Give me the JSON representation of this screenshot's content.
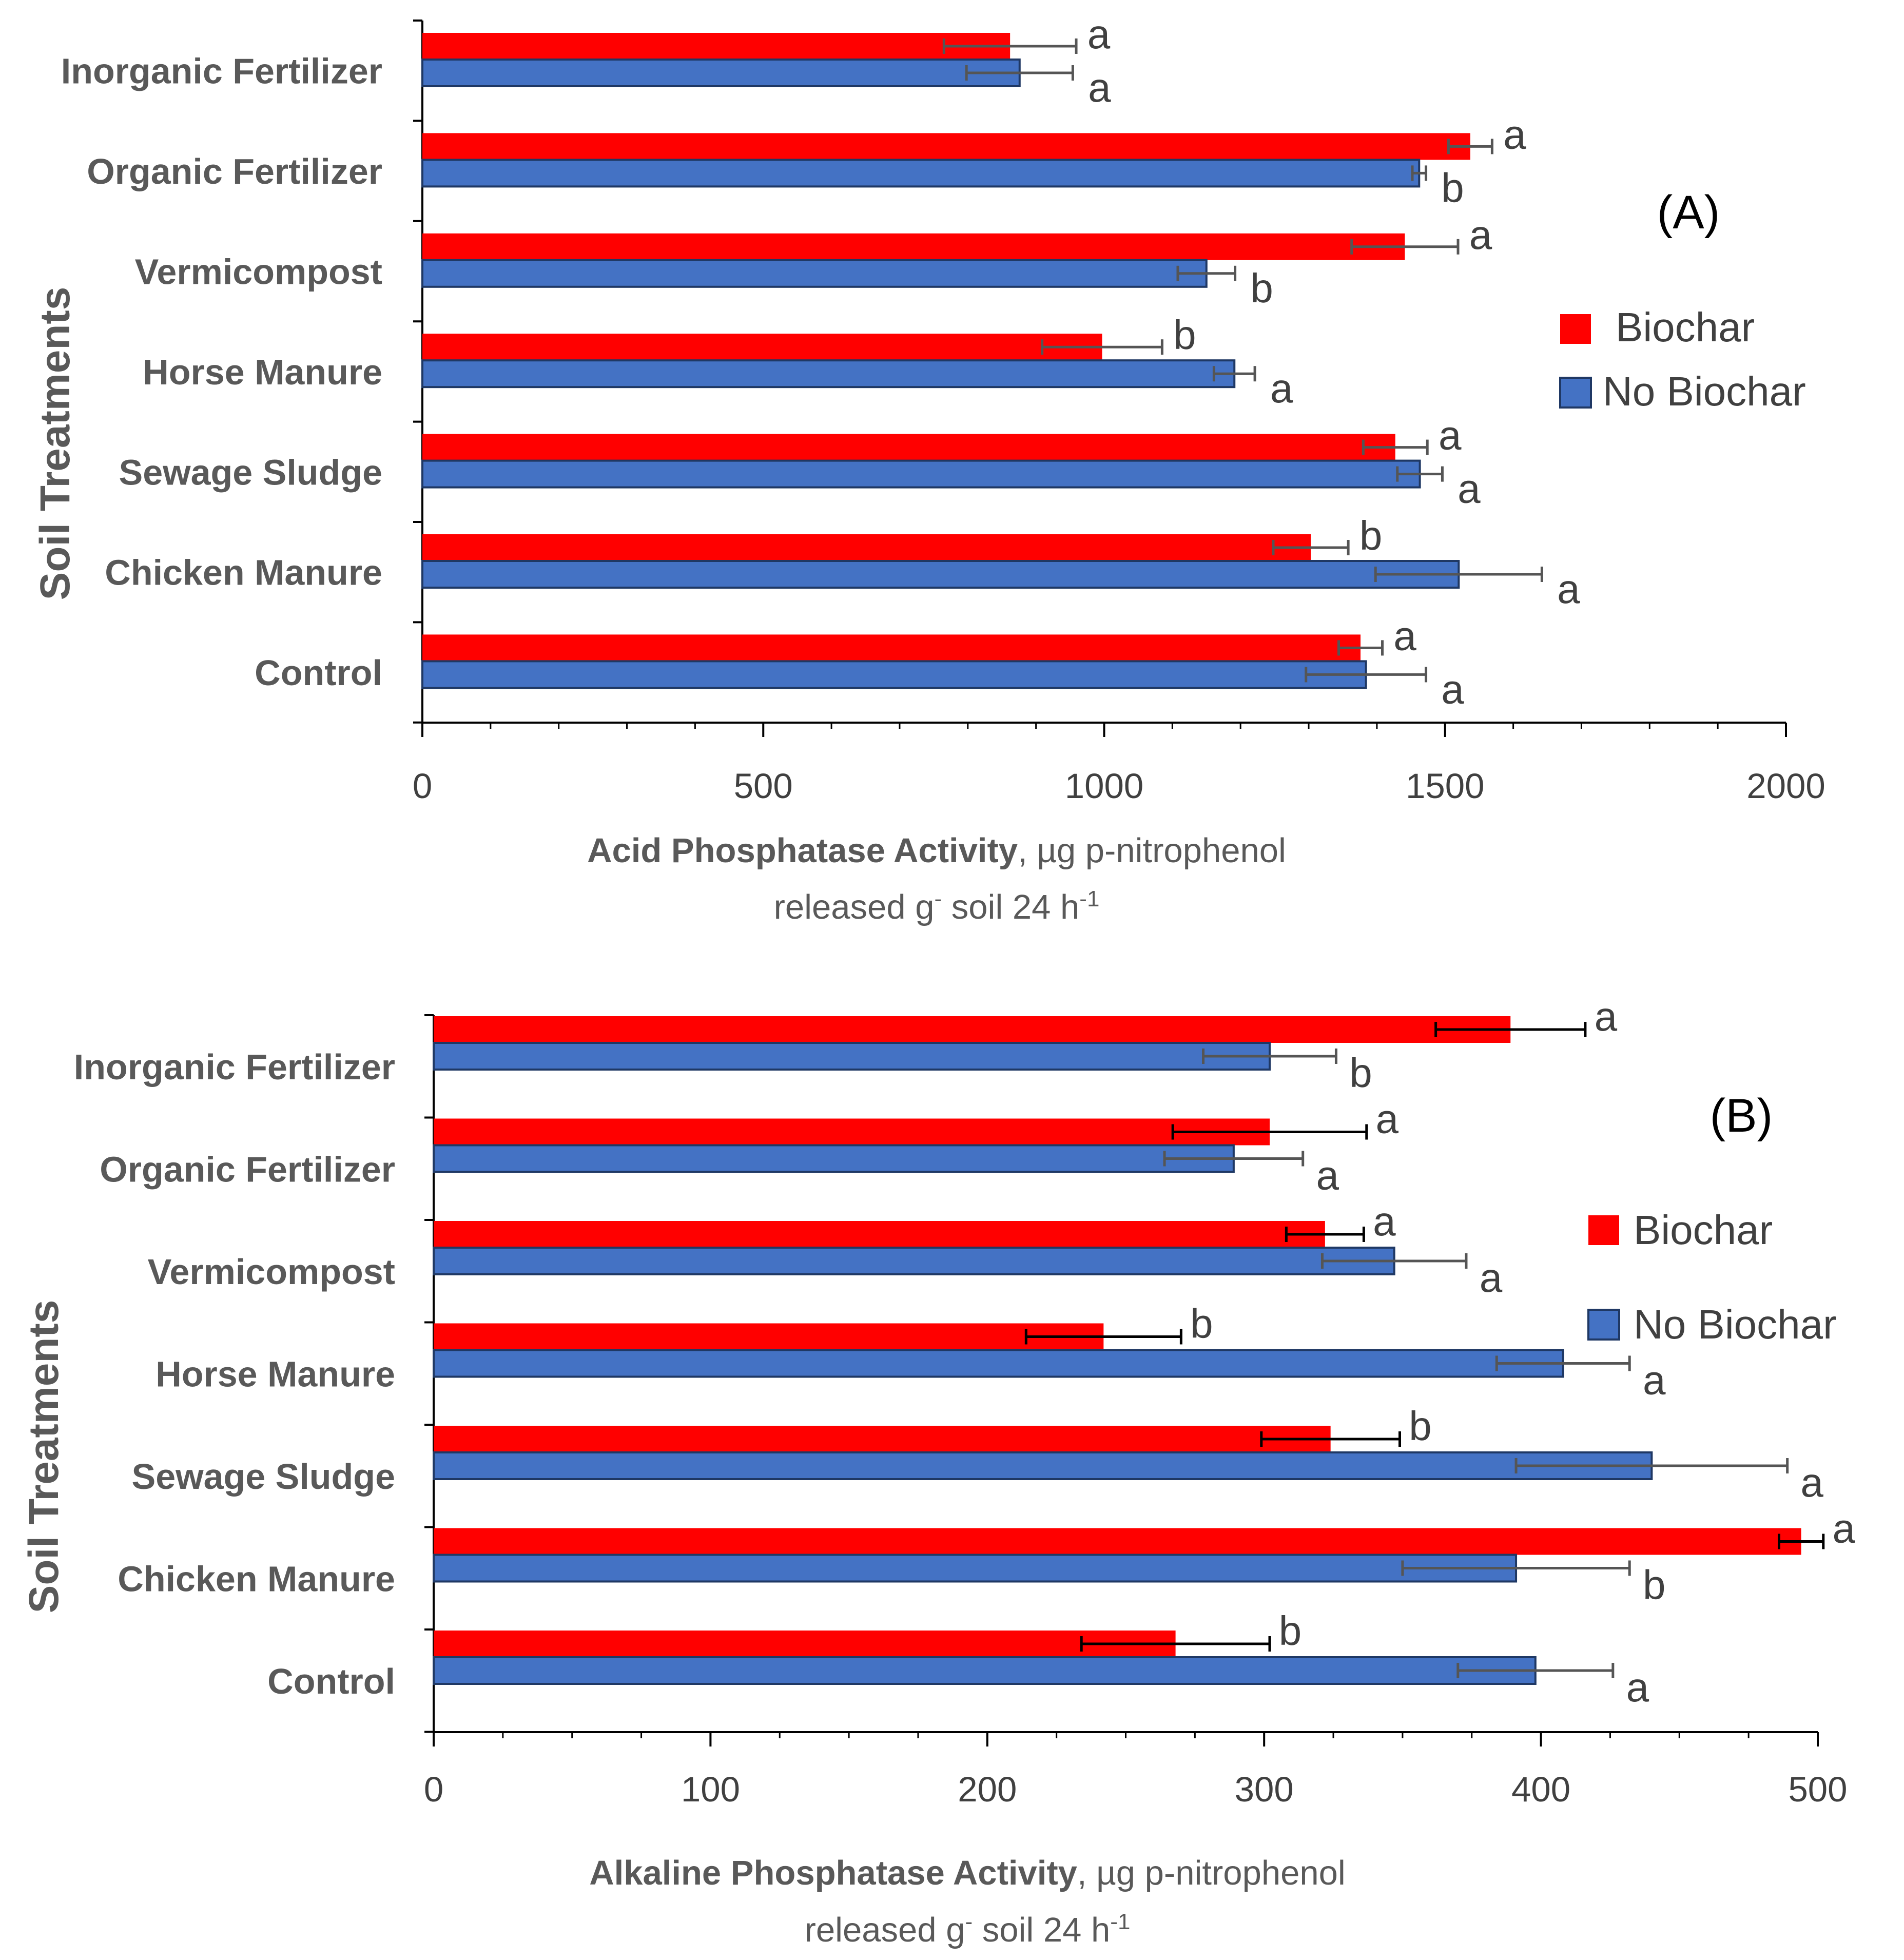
{
  "chart_data": [
    {
      "type": "bar",
      "orientation": "horizontal",
      "panel_label": "(A)",
      "categories": [
        "Inorganic Fertilizer",
        "Organic Fertilizer",
        "Vermicompost",
        "Horse Manure",
        "Sewage Sludge",
        "Chicken Manure",
        "Control"
      ],
      "ylabel": "Soil Treatments",
      "xlabel_bold": "Acid Phosphatase Activity",
      "xlabel_rest": ", µg p-nitrophenol",
      "xlabel_line2": "released g",
      "xlabel_sup1": "-",
      "xlabel_line2b": " soil  24 h",
      "xlabel_sup2": "-1",
      "xlim": [
        0,
        2000
      ],
      "xticks": [
        0,
        500,
        1000,
        1500,
        2000
      ],
      "xtick_labels": [
        "0",
        "500",
        "1000",
        "1500",
        "2000"
      ],
      "legend_position": "right",
      "series": [
        {
          "name": "Biochar",
          "color": "#ff0000",
          "values": [
            862,
            1537,
            1441,
            997,
            1427,
            1303,
            1376
          ],
          "errors": [
            97,
            32,
            78,
            88,
            47,
            55,
            32
          ],
          "letters": [
            "a",
            "a",
            "a",
            "b",
            "a",
            "b",
            "a"
          ]
        },
        {
          "name": "No Biochar",
          "color": "#4472c4",
          "values": [
            876,
            1462,
            1150,
            1191,
            1463,
            1520,
            1384
          ],
          "errors": [
            78,
            10,
            42,
            30,
            33,
            122,
            88
          ],
          "letters": [
            "a",
            "b",
            "b",
            "a",
            "a",
            "a",
            "a"
          ]
        }
      ]
    },
    {
      "type": "bar",
      "orientation": "horizontal",
      "panel_label": "(B)",
      "categories": [
        "Inorganic Fertilizer",
        "Organic Fertilizer",
        "Vermicompost",
        "Horse Manure",
        "Sewage Sludge",
        "Chicken Manure",
        "Control"
      ],
      "ylabel": "Soil Treatments",
      "xlabel_bold": "Alkaline Phosphatase Activity",
      "xlabel_rest": ", µg p-nitrophenol",
      "xlabel_line2": "released g",
      "xlabel_sup1": "-",
      "xlabel_line2b": " soil  24 h",
      "xlabel_sup2": "-1",
      "xlim": [
        0,
        500
      ],
      "xticks": [
        0,
        100,
        200,
        300,
        400,
        500
      ],
      "xtick_labels": [
        "0",
        "100",
        "200",
        "300",
        "400",
        "500"
      ],
      "legend_position": "right",
      "series": [
        {
          "name": "Biochar",
          "color": "#ff0000",
          "values": [
            389,
            302,
            322,
            242,
            324,
            494,
            268
          ],
          "errors": [
            27,
            35,
            14,
            28,
            25,
            8,
            34
          ],
          "letters": [
            "a",
            "a",
            "a",
            "b",
            "b",
            "a",
            "b"
          ]
        },
        {
          "name": "No Biochar",
          "color": "#4472c4",
          "values": [
            302,
            289,
            347,
            408,
            440,
            391,
            398
          ],
          "errors": [
            24,
            25,
            26,
            24,
            49,
            41,
            28
          ],
          "letters": [
            "b",
            "a",
            "a",
            "a",
            "a",
            "b",
            "a"
          ]
        }
      ]
    }
  ]
}
